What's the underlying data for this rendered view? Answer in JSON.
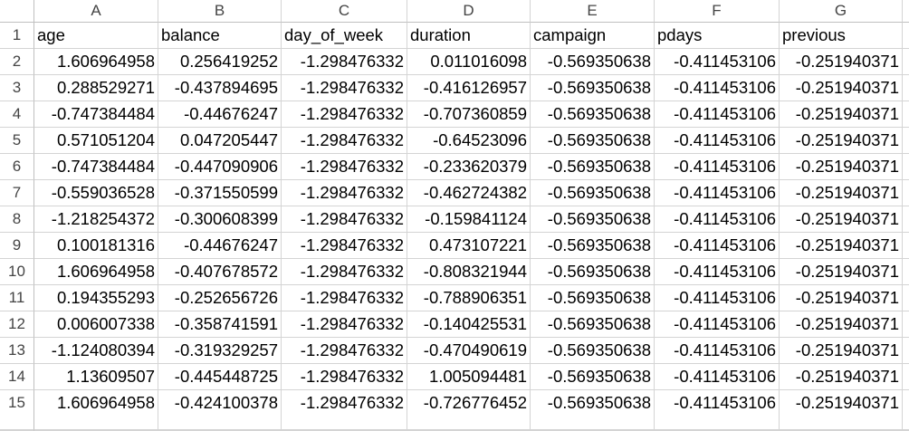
{
  "sheet": {
    "columns": [
      "A",
      "B",
      "C",
      "D",
      "E",
      "F",
      "G"
    ],
    "rows": [
      {
        "num": "1",
        "cells": [
          "age",
          "balance",
          "day_of_week",
          "duration",
          "campaign",
          "pdays",
          "previous"
        ]
      },
      {
        "num": "2",
        "cells": [
          "1.606964958",
          "0.256419252",
          "-1.298476332",
          "0.011016098",
          "-0.569350638",
          "-0.411453106",
          "-0.251940371"
        ]
      },
      {
        "num": "3",
        "cells": [
          "0.288529271",
          "-0.437894695",
          "-1.298476332",
          "-0.416126957",
          "-0.569350638",
          "-0.411453106",
          "-0.251940371"
        ]
      },
      {
        "num": "4",
        "cells": [
          "-0.747384484",
          "-0.44676247",
          "-1.298476332",
          "-0.707360859",
          "-0.569350638",
          "-0.411453106",
          "-0.251940371"
        ]
      },
      {
        "num": "5",
        "cells": [
          "0.571051204",
          "0.047205447",
          "-1.298476332",
          "-0.64523096",
          "-0.569350638",
          "-0.411453106",
          "-0.251940371"
        ]
      },
      {
        "num": "6",
        "cells": [
          "-0.747384484",
          "-0.447090906",
          "-1.298476332",
          "-0.233620379",
          "-0.569350638",
          "-0.411453106",
          "-0.251940371"
        ]
      },
      {
        "num": "7",
        "cells": [
          "-0.559036528",
          "-0.371550599",
          "-1.298476332",
          "-0.462724382",
          "-0.569350638",
          "-0.411453106",
          "-0.251940371"
        ]
      },
      {
        "num": "8",
        "cells": [
          "-1.218254372",
          "-0.300608399",
          "-1.298476332",
          "-0.159841124",
          "-0.569350638",
          "-0.411453106",
          "-0.251940371"
        ]
      },
      {
        "num": "9",
        "cells": [
          "0.100181316",
          "-0.44676247",
          "-1.298476332",
          "0.473107221",
          "-0.569350638",
          "-0.411453106",
          "-0.251940371"
        ]
      },
      {
        "num": "10",
        "cells": [
          "1.606964958",
          "-0.407678572",
          "-1.298476332",
          "-0.808321944",
          "-0.569350638",
          "-0.411453106",
          "-0.251940371"
        ]
      },
      {
        "num": "11",
        "cells": [
          "0.194355293",
          "-0.252656726",
          "-1.298476332",
          "-0.788906351",
          "-0.569350638",
          "-0.411453106",
          "-0.251940371"
        ]
      },
      {
        "num": "12",
        "cells": [
          "0.006007338",
          "-0.358741591",
          "-1.298476332",
          "-0.140425531",
          "-0.569350638",
          "-0.411453106",
          "-0.251940371"
        ]
      },
      {
        "num": "13",
        "cells": [
          "-1.124080394",
          "-0.319329257",
          "-1.298476332",
          "-0.470490619",
          "-0.569350638",
          "-0.411453106",
          "-0.251940371"
        ]
      },
      {
        "num": "14",
        "cells": [
          "1.13609507",
          "-0.445448725",
          "-1.298476332",
          "1.005094481",
          "-0.569350638",
          "-0.411453106",
          "-0.251940371"
        ]
      },
      {
        "num": "15",
        "cells": [
          "1.606964958",
          "-0.424100378",
          "-1.298476332",
          "-0.726776452",
          "-0.569350638",
          "-0.411453106",
          "-0.251940371"
        ]
      }
    ]
  }
}
